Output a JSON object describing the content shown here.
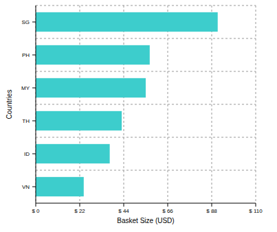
{
  "chart_data": {
    "type": "bar",
    "orientation": "horizontal",
    "xlabel": "Basket Size (USD)",
    "ylabel": "Countries",
    "categories": [
      "SG",
      "PH",
      "MY",
      "TH",
      "ID",
      "VN"
    ],
    "values": [
      91,
      57,
      55,
      43,
      37,
      24
    ],
    "color": "#3dcdcc",
    "xlim": [
      0,
      110
    ],
    "xticks": [
      {
        "value": 0,
        "label": "$ 0"
      },
      {
        "value": 22,
        "label": "$ 22"
      },
      {
        "value": 44,
        "label": "$ 44"
      },
      {
        "value": 66,
        "label": "$ 66"
      },
      {
        "value": 88,
        "label": "$ 88"
      },
      {
        "value": 110,
        "label": "$ 110"
      }
    ],
    "grid": true
  }
}
